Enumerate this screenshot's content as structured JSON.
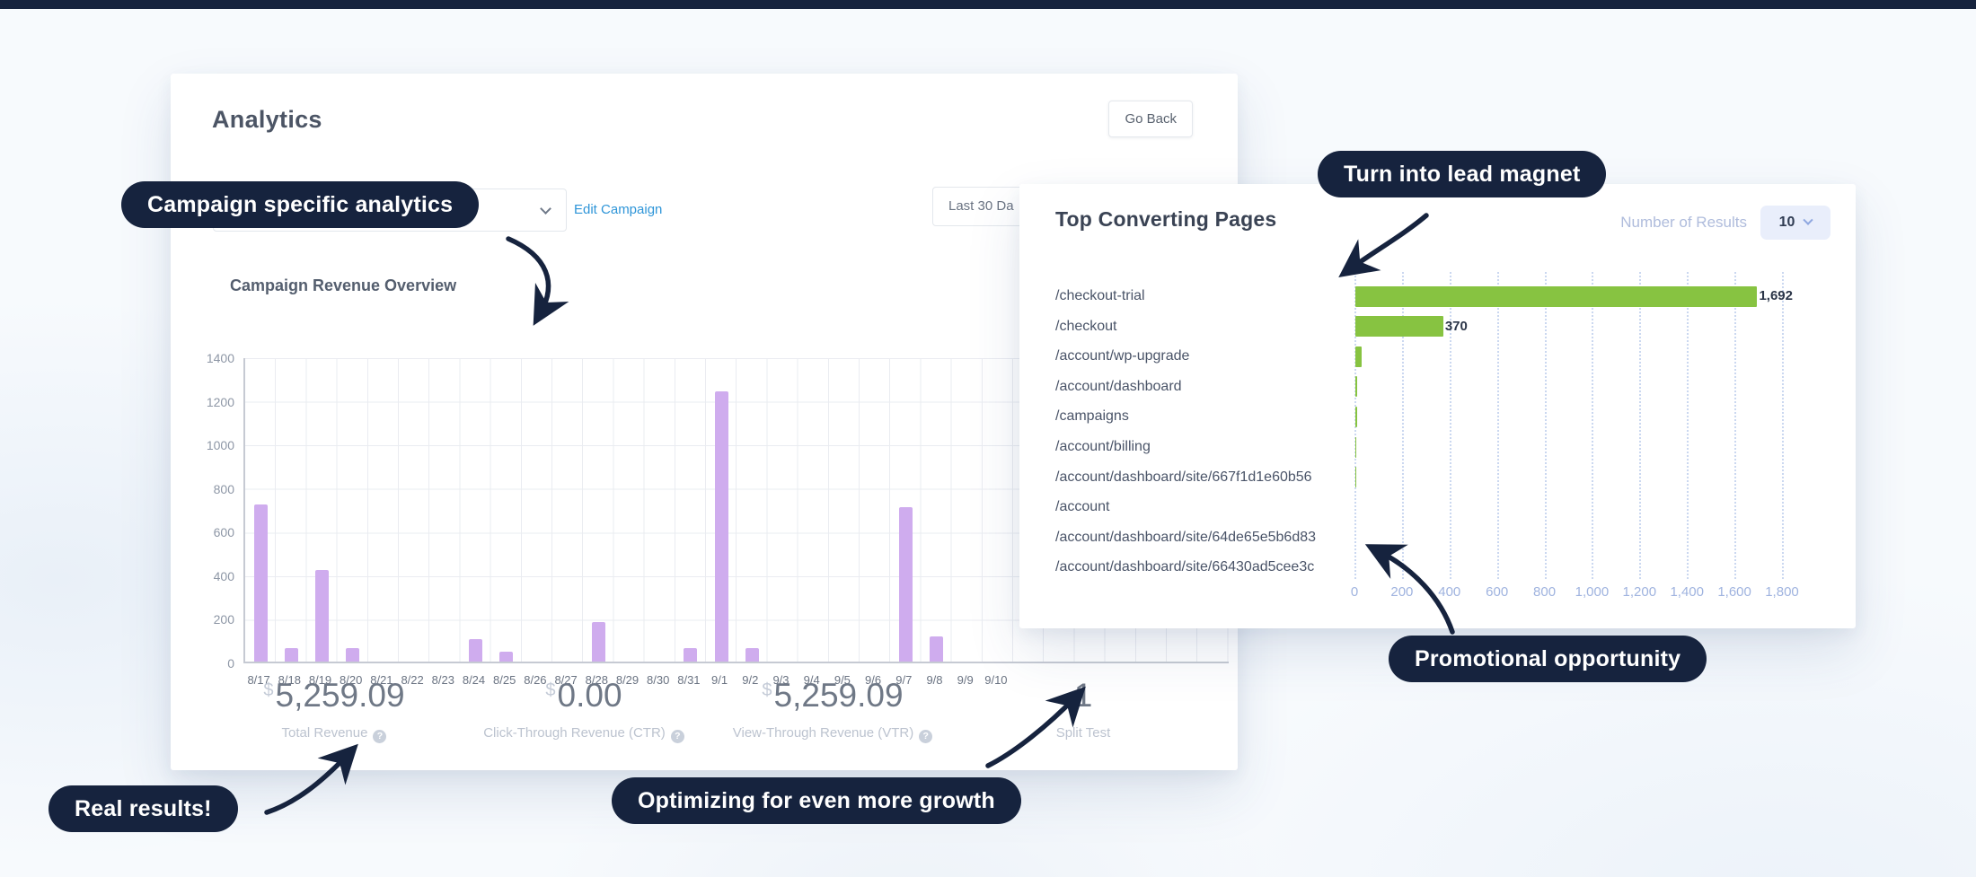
{
  "page": {
    "topbar_color": "#16233E",
    "background": "#F7FAFD",
    "accent_navy": "#16233E"
  },
  "analytics_panel": {
    "title": "Analytics",
    "go_back_label": "Go Back",
    "edit_campaign_label": "Edit Campaign",
    "date_range_value": "Last 30 Da",
    "section_title": "Campaign Revenue Overview",
    "stats": [
      {
        "prefix": "$",
        "value": "5,259.09",
        "label": "Total Revenue",
        "help": true
      },
      {
        "prefix": "$",
        "value": "0.00",
        "label": "Click-Through Revenue (CTR)",
        "help": true
      },
      {
        "prefix": "$",
        "value": "5,259.09",
        "label": "View-Through Revenue (VTR)",
        "help": true
      },
      {
        "prefix": "",
        "value": "1",
        "label": "Split Test",
        "help": false
      }
    ]
  },
  "pages_panel": {
    "title": "Top Converting Pages",
    "results_label": "Number of Results",
    "results_value": "10"
  },
  "callouts": [
    {
      "id": "campaign-analytics",
      "text": "Campaign specific analytics"
    },
    {
      "id": "lead-magnet",
      "text": "Turn into lead magnet"
    },
    {
      "id": "promotional",
      "text": "Promotional opportunity"
    },
    {
      "id": "real-results",
      "text": "Real results!"
    },
    {
      "id": "optimizing",
      "text": "Optimizing for even more growth"
    }
  ],
  "chart_data": [
    {
      "id": "campaign_revenue",
      "type": "bar",
      "title": "Campaign Revenue Overview",
      "categories": [
        "8/17",
        "8/18",
        "8/19",
        "8/20",
        "8/21",
        "8/22",
        "8/23",
        "8/24",
        "8/25",
        "8/26",
        "8/27",
        "8/28",
        "8/29",
        "8/30",
        "8/31",
        "9/1",
        "9/2",
        "9/3",
        "9/4",
        "9/5",
        "9/6",
        "9/7",
        "9/8",
        "9/9",
        "9/10"
      ],
      "values": [
        720,
        60,
        420,
        60,
        0,
        0,
        0,
        105,
        45,
        0,
        0,
        180,
        0,
        0,
        60,
        1240,
        60,
        0,
        0,
        0,
        0,
        710,
        115,
        0,
        0
      ],
      "y_ticks": [
        0,
        200,
        400,
        600,
        800,
        1000,
        1200,
        1400
      ],
      "ylim": [
        0,
        1400
      ],
      "bar_color": "#CFACEE",
      "grid": true,
      "legend": "none"
    },
    {
      "id": "top_converting_pages",
      "type": "bar-horizontal",
      "title": "Top Converting Pages",
      "categories": [
        "/checkout-trial",
        "/checkout",
        "/account/wp-upgrade",
        "/account/dashboard",
        "/campaigns",
        "/account/billing",
        "/account/dashboard/site/667f1d1e60b56",
        "/account",
        "/account/dashboard/site/64de65e5b6d83",
        "/account/dashboard/site/66430ad5cee3c"
      ],
      "values": [
        1692,
        370,
        28,
        8,
        6,
        5,
        4,
        3,
        2,
        2
      ],
      "value_labels": [
        "1,692",
        "370",
        "",
        "",
        "",
        "",
        "",
        "",
        "",
        ""
      ],
      "x_ticks": [
        "0",
        "200",
        "400",
        "600",
        "800",
        "1,000",
        "1,200",
        "1,400",
        "1,600",
        "1,800"
      ],
      "xlim": [
        0,
        1800
      ],
      "bar_color": "#87C341",
      "grid": "dotted-vertical",
      "legend": "none"
    }
  ]
}
